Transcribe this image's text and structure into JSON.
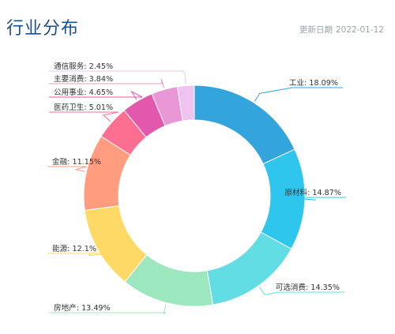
{
  "header": {
    "title": "行业分布",
    "date_label": "更新日期",
    "date_value": "2022-01-12"
  },
  "chart_data": {
    "type": "pie",
    "variant": "donut",
    "title": "行业分布",
    "slices": [
      {
        "name": "工业",
        "value": 18.09,
        "label": "工业: 18.09%",
        "color": "#34a4dc"
      },
      {
        "name": "原材料",
        "value": 14.87,
        "label": "原材料: 14.87%",
        "color": "#2ec6ec"
      },
      {
        "name": "可选消费",
        "value": 14.35,
        "label": "可选消费: 14.35%",
        "color": "#62dde3"
      },
      {
        "name": "房地产",
        "value": 13.49,
        "label": "房地产: 13.49%",
        "color": "#9de7bf"
      },
      {
        "name": "能源",
        "value": 12.1,
        "label": "能源: 12.1%",
        "color": "#ffd966"
      },
      {
        "name": "金融",
        "value": 11.15,
        "label": "金融: 11.15%",
        "color": "#ff9d7e"
      },
      {
        "name": "医药卫生",
        "value": 5.01,
        "label": "医药卫生: 5.01%",
        "color": "#fd6f91"
      },
      {
        "name": "公用事业",
        "value": 4.65,
        "label": "公用事业: 4.65%",
        "color": "#e158ad"
      },
      {
        "name": "主要消费",
        "value": 3.84,
        "label": "主要消费: 3.84%",
        "color": "#ea97d6"
      },
      {
        "name": "通信服务",
        "value": 2.45,
        "label": "通信服务: 2.45%",
        "color": "#eec3f0"
      }
    ]
  }
}
